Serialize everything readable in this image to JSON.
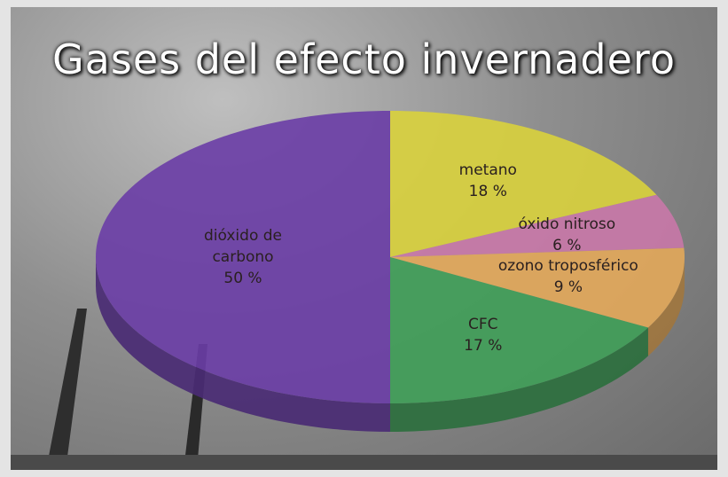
{
  "chart_data": {
    "type": "pie",
    "title": "Gases del efecto invernadero",
    "categories": [
      "metano",
      "óxido nitroso",
      "ozono troposférico",
      "CFC",
      "dióxido de carbono"
    ],
    "values": [
      18,
      6,
      9,
      17,
      50
    ],
    "value_labels": [
      "18 %",
      "6 %",
      "9 %",
      "17 %",
      "50 %"
    ],
    "colors": [
      "#d9d23c",
      "#c978a8",
      "#e3a85a",
      "#3f9f58",
      "#6a3da6"
    ]
  }
}
